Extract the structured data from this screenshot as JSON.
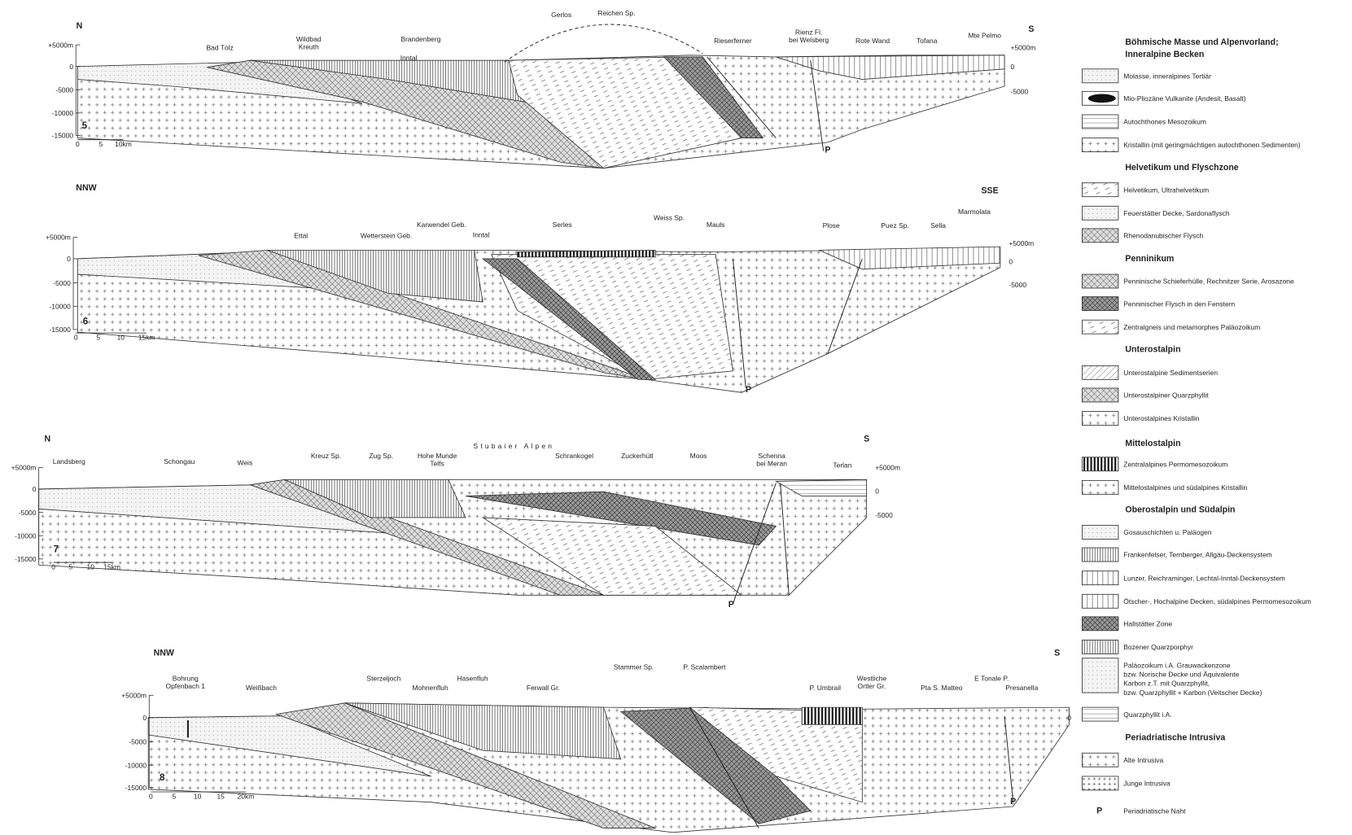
{
  "sections": [
    {
      "number": "5",
      "left": "N",
      "right": "S",
      "places": [
        [
          "Bad Tölz"
        ],
        [
          "Wildbad",
          "Kreuth"
        ],
        [
          "Brandenberg"
        ],
        [
          "Inntal"
        ],
        [
          "Gerlos"
        ],
        [
          "Reichen Sp."
        ],
        [
          "Rieserferner"
        ],
        [
          "Rienz Fl.",
          "bei Welsberg"
        ],
        [
          "Rote Wand"
        ],
        [
          "Tofana"
        ],
        [
          "Mte Pelmo"
        ]
      ],
      "depth_left": [
        "+5000m",
        "0",
        "-5000",
        "-10000",
        "-15000"
      ],
      "depth_right": [
        "+5000m",
        "0",
        "-5000"
      ],
      "scale": [
        "0",
        "5",
        "10km"
      ],
      "suture": "P"
    },
    {
      "number": "6",
      "left": "NNW",
      "right": "SSE",
      "places": [
        [
          "Ettal"
        ],
        [
          "Wetterstein Geb."
        ],
        [
          "Karwendel Geb."
        ],
        [
          "Inntal"
        ],
        [
          "Serles"
        ],
        [
          "Weiss Sp."
        ],
        [
          "Mauls"
        ],
        [
          "Plose"
        ],
        [
          "Puez Sp."
        ],
        [
          "Sella"
        ],
        [
          "Marmolata"
        ]
      ],
      "depth_left": [
        "+5000m",
        "0",
        "-5000",
        "-10000",
        "-15000"
      ],
      "depth_right": [
        "+5000m",
        "0",
        "-5000"
      ],
      "scale": [
        "0",
        "5",
        "10",
        "15km"
      ],
      "suture": "P"
    },
    {
      "number": "7",
      "left": "N",
      "right": "S",
      "places": [
        [
          "Landsberg"
        ],
        [
          "Schongau"
        ],
        [
          "Weis"
        ],
        [
          "Kreuz Sp."
        ],
        [
          "Zug Sp."
        ],
        [
          "Hohe Munde",
          "Telfs"
        ],
        [
          "Stubaier Alpen"
        ],
        [
          "Schrankogel"
        ],
        [
          "Zuckerhütl"
        ],
        [
          "Moos"
        ],
        [
          "Schenna",
          "bei Meran"
        ],
        [
          "Terlan"
        ]
      ],
      "depth_left": [
        "+5000m",
        "0",
        "-5000",
        "-10000",
        "-15000"
      ],
      "depth_right": [
        "+5000m",
        "0",
        "-5000"
      ],
      "scale": [
        "0",
        "5",
        "10",
        "15km"
      ],
      "suture": "P"
    },
    {
      "number": "8",
      "left": "NNW",
      "right": "S",
      "places": [
        [
          "Bohrung",
          "Opfenbach 1"
        ],
        [
          "Weißbach"
        ],
        [
          "Sterzeljoch"
        ],
        [
          "Mohnenfluh"
        ],
        [
          "Hasenfluh"
        ],
        [
          "Ferwall Gr."
        ],
        [
          "Stammer Sp."
        ],
        [
          "P. Scalambert"
        ],
        [
          "P. Umbrail"
        ],
        [
          "Westliche",
          "Ortler Gr."
        ],
        [
          "Pta S. Matteo"
        ],
        [
          "E Tonale P."
        ],
        [
          "Presanella"
        ]
      ],
      "depth_left": [
        "+5000m",
        "0",
        "-5000",
        "-10000",
        "-15000"
      ],
      "depth_right": [
        "0"
      ],
      "scale": [
        "0",
        "5",
        "10",
        "15",
        "20km"
      ],
      "suture": "P"
    }
  ],
  "legend": {
    "groups": [
      {
        "title": [
          "Böhmische Masse und Alpenvorland;",
          "Inneralpine Becken"
        ],
        "items": [
          [
            "Molasse, inneralpines Tertiär"
          ],
          [
            "Mio-Pliozäne Vulkanite (Andesit, Basalt)"
          ],
          [
            "Autochthones Mesozoikum"
          ],
          [
            "Kristallin (mit geringmächtigen autochthonen Sedimenten)"
          ]
        ]
      },
      {
        "title": [
          "Helvetikum und Flyschzone"
        ],
        "items": [
          [
            "Helvetikum, Ultrahelvetikum"
          ],
          [
            "Feuerstätter Decke, Sardonaflysch"
          ],
          [
            "Rhenodanubischer Flysch"
          ]
        ]
      },
      {
        "title": [
          "Penninikum"
        ],
        "items": [
          [
            "Penninische Schieferhülle, Rechnitzer Serie, Arosazone"
          ],
          [
            "Penninischer Flysch in den Fenstern"
          ],
          [
            "Zentralgneis und metamorphes Paläozoikum"
          ]
        ]
      },
      {
        "title": [
          "Unterostalpin"
        ],
        "items": [
          [
            "Unterostalpine Sedimentserien"
          ],
          [
            "Unterostalpiner Quarzphyllit"
          ],
          [
            "Unterostalpines Kristallin"
          ]
        ]
      },
      {
        "title": [
          "Mittelostalpin"
        ],
        "items": [
          [
            "Zentralalpines Permomesozoikum"
          ],
          [
            "Mittelostalpines und südalpines Kristallin"
          ]
        ]
      },
      {
        "title": [
          "Oberostalpin und Südalpin"
        ],
        "items": [
          [
            "Gosauschichten u. Paläogen"
          ],
          [
            "Frankenfelser, Ternberger, Allgäu-Deckensystem"
          ],
          [
            "Lunzer, Reichraminger, Lechtal-Inntal-Deckensystem"
          ],
          [
            "Ötscher-, Hochalpine Decken, südalpines Permomesozoikum"
          ],
          [
            "Hallstätter Zone"
          ],
          [
            "Bozener Quarzporphyr"
          ],
          [
            "Paläozoikum i.A. Grauwackenzone",
            "bzw. Norische Decke und Äquivalente",
            "Karbon z.T. mit Quarzphyllit,",
            "bzw. Quarzphyllit + Karbon (Veitscher Decke)"
          ],
          [
            "Quarzphyllit i.A."
          ]
        ]
      },
      {
        "title": [
          "Periadriatische Intrusiva"
        ],
        "items": [
          [
            "Alte Intrusiva"
          ],
          [
            "Junge Intrusiva"
          ]
        ]
      }
    ],
    "suture": {
      "symbol": "P",
      "label": "Periadriatische Naht"
    }
  }
}
